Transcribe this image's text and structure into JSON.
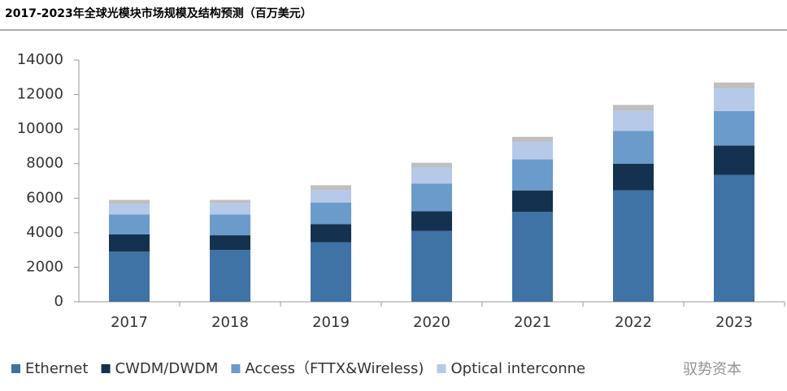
{
  "chart_data": {
    "type": "stacked_bar",
    "title": "2017-2023年全球光模块市场规模及结构预测（百万美元）",
    "categories": [
      "2017",
      "2018",
      "2019",
      "2020",
      "2021",
      "2022",
      "2023"
    ],
    "series": [
      {
        "name": "Ethernet",
        "color": "#3f72a5",
        "values": [
          2900,
          3000,
          3450,
          4100,
          5200,
          6450,
          7350
        ]
      },
      {
        "name": "CWDM/DWDM",
        "color": "#14324f",
        "values": [
          1000,
          850,
          1050,
          1150,
          1250,
          1550,
          1700
        ]
      },
      {
        "name": "Access（FTTX&Wireless)",
        "color": "#6b9bcb",
        "values": [
          1150,
          1200,
          1250,
          1600,
          1800,
          1900,
          2000
        ]
      },
      {
        "name": "Optical interconne",
        "color": "#b6c9e9",
        "values": [
          600,
          650,
          700,
          950,
          1000,
          1150,
          1300
        ]
      },
      {
        "name": null,
        "color": "#bfbfbf",
        "values": [
          250,
          200,
          300,
          250,
          300,
          350,
          350
        ]
      }
    ],
    "ylim": [
      0,
      14000
    ],
    "yticks": [
      0,
      2000,
      4000,
      6000,
      8000,
      10000,
      12000,
      14000
    ],
    "watermark": "驭势资本"
  }
}
